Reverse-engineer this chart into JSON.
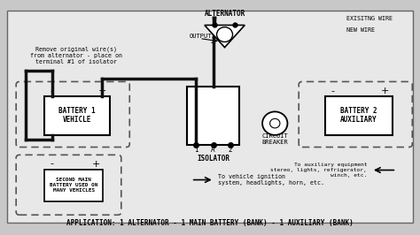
{
  "bg_color": "#c8c8c8",
  "diagram_bg": "#e8e8e8",
  "title": "APPLICATION: 1 ALTERNATOR - 1 MAIN BATTERY (BANK) - 1 AUXILIARY (BANK)",
  "title_fontsize": 6.0,
  "legend_existing": "EXISITNG WIRE",
  "legend_new": "NEW WIRE",
  "battery1_label": "BATTERY 1\nVEHICLE",
  "battery2_label": "BATTERY 2\nAUXILIARY",
  "second_battery_label": "SECOND MAIN\nBATTERY USED ON\nMANY VEHICLES",
  "alternator_label": "ALTERNATOR",
  "output_label": "OUTPUT",
  "isolator_label": "ISOLATOR",
  "circuit_breaker_label": "CIRCUIT\nBREAKER",
  "note1": "Remove original wire(s)\nfrom alternator - place on\nterminal #1 of isolator",
  "note2": "To vehicle ignition\nsystem, headlights, horn, etc.",
  "note3": "To auxiliary equipment\nstereo, lights, refrigerator,\nwinch, etc."
}
